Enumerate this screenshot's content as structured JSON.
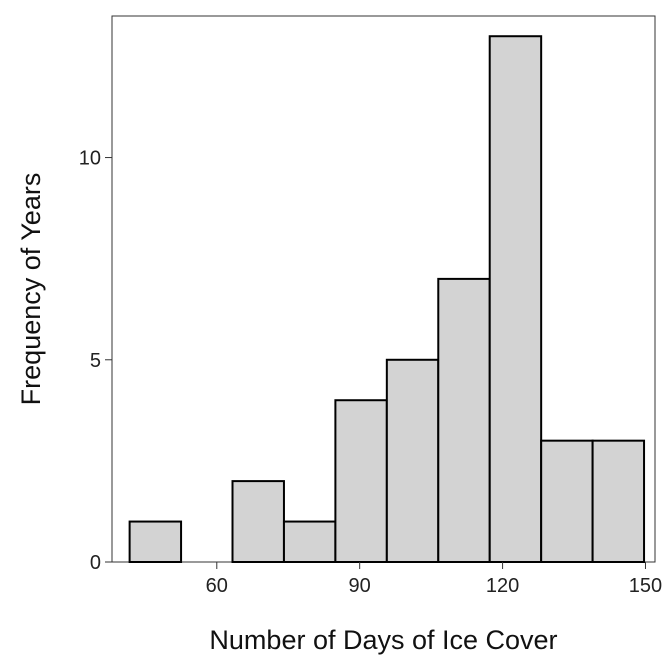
{
  "chart_data": {
    "type": "bar",
    "subtype": "histogram",
    "title": "",
    "xlabel": "Number of Days of Ice Cover",
    "ylabel": "Frequency of Years",
    "xlim": [
      38,
      152
    ],
    "ylim": [
      0,
      13.5
    ],
    "x_ticks": [
      60,
      90,
      120,
      150
    ],
    "y_ticks": [
      0,
      5,
      10
    ],
    "grid": false,
    "legend": "none",
    "bin_width": 10.8,
    "bins": [
      {
        "start": 41.7,
        "end": 52.5,
        "count": 1
      },
      {
        "start": 52.5,
        "end": 63.3,
        "count": 0
      },
      {
        "start": 63.3,
        "end": 74.1,
        "count": 2
      },
      {
        "start": 74.1,
        "end": 84.9,
        "count": 1
      },
      {
        "start": 84.9,
        "end": 95.7,
        "count": 4
      },
      {
        "start": 95.7,
        "end": 106.5,
        "count": 5
      },
      {
        "start": 106.5,
        "end": 117.3,
        "count": 7
      },
      {
        "start": 117.3,
        "end": 128.1,
        "count": 13
      },
      {
        "start": 128.1,
        "end": 138.9,
        "count": 3
      },
      {
        "start": 138.9,
        "end": 149.7,
        "count": 3
      }
    ],
    "colors": {
      "bar_fill": "#d3d3d3",
      "bar_stroke": "#000000",
      "frame": "#333333"
    }
  }
}
